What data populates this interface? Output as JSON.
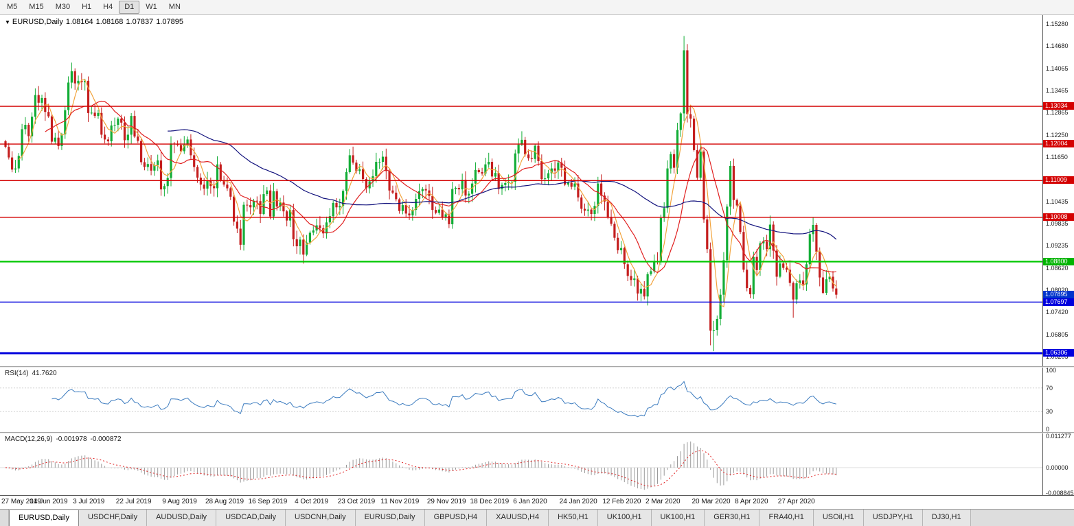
{
  "toolbar": {
    "timeframes": [
      "M5",
      "M15",
      "M30",
      "H1",
      "H4",
      "D1",
      "W1",
      "MN"
    ],
    "active": "D1"
  },
  "chart": {
    "marker": "▼",
    "title": "EURUSD,Daily",
    "open": "1.08164",
    "high": "1.08168",
    "low": "1.07837",
    "close": "1.07895"
  },
  "chart_data": {
    "type": "candlestick",
    "symbol": "EURUSD",
    "timeframe": "Daily",
    "y_range": [
      1.0595,
      1.1552
    ],
    "y_ticks": [
      "1.15280",
      "1.14680",
      "1.14065",
      "1.13465",
      "1.12865",
      "1.12250",
      "1.11650",
      "1.10435",
      "1.09835",
      "1.09235",
      "1.08620",
      "1.08020",
      "1.07420",
      "1.06805",
      "1.06205"
    ],
    "hlines": [
      {
        "value": 1.13034,
        "color": "#d40000",
        "width": 1.4
      },
      {
        "value": 1.12004,
        "color": "#d40000",
        "width": 1.4
      },
      {
        "value": 1.11009,
        "color": "#d40000",
        "width": 1.4
      },
      {
        "value": 1.10008,
        "color": "#d40000",
        "width": 1.4
      },
      {
        "value": 1.088,
        "color": "#00c800",
        "width": 2.2
      },
      {
        "value": 1.07697,
        "color": "#0000dd",
        "width": 1.4
      },
      {
        "value": 1.06306,
        "color": "#0000dd",
        "width": 3
      }
    ],
    "price_tags": [
      {
        "text": "1.13034",
        "value": 1.13034,
        "color": "#d40000"
      },
      {
        "text": "1.12004",
        "value": 1.12004,
        "color": "#d40000"
      },
      {
        "text": "1.11009",
        "value": 1.11009,
        "color": "#d40000"
      },
      {
        "text": "1.10008",
        "value": 1.10008,
        "color": "#d40000"
      },
      {
        "text": "1.08800",
        "value": 1.088,
        "color": "#00b400"
      },
      {
        "text": "1.07895",
        "value": 1.07895,
        "color": "#0033cc"
      },
      {
        "text": "1.07697",
        "value": 1.07697,
        "color": "#0000dd"
      },
      {
        "text": "1.06306",
        "value": 1.06306,
        "color": "#0000dd"
      }
    ],
    "up_color": "#12ad36",
    "down_color": "#c41e1e",
    "moving_averages": [
      {
        "period": 5,
        "color": "#f2a33c"
      },
      {
        "period": 13,
        "color": "#e02020"
      },
      {
        "period": 50,
        "color": "#12127d"
      }
    ],
    "x_axis_labels": [
      {
        "label": "27 May 2019",
        "index": 0
      },
      {
        "label": "14 Jun 2019",
        "index": 14
      },
      {
        "label": "3 Jul 2019",
        "index": 27
      },
      {
        "label": "22 Jul 2019",
        "index": 40
      },
      {
        "label": "9 Aug 2019",
        "index": 54
      },
      {
        "label": "28 Aug 2019",
        "index": 67
      },
      {
        "label": "16 Sep 2019",
        "index": 80
      },
      {
        "label": "4 Oct 2019",
        "index": 94
      },
      {
        "label": "23 Oct 2019",
        "index": 107
      },
      {
        "label": "11 Nov 2019",
        "index": 120
      },
      {
        "label": "29 Nov 2019",
        "index": 134
      },
      {
        "label": "18 Dec 2019",
        "index": 147
      },
      {
        "label": "6 Jan 2020",
        "index": 160
      },
      {
        "label": "24 Jan 2020",
        "index": 174
      },
      {
        "label": "12 Feb 2020",
        "index": 187
      },
      {
        "label": "2 Mar 2020",
        "index": 200
      },
      {
        "label": "20 Mar 2020",
        "index": 214
      },
      {
        "label": "8 Apr 2020",
        "index": 227
      },
      {
        "label": "27 Apr 2020",
        "index": 240
      }
    ],
    "closes": [
      1.1193,
      1.1164,
      1.1131,
      1.1134,
      1.1168,
      1.1241,
      1.1253,
      1.1222,
      1.1275,
      1.1334,
      1.1313,
      1.1326,
      1.1288,
      1.1276,
      1.1207,
      1.1218,
      1.1195,
      1.1227,
      1.1293,
      1.1368,
      1.1399,
      1.1366,
      1.1373,
      1.1369,
      1.1373,
      1.1285,
      1.1286,
      1.1277,
      1.1285,
      1.1226,
      1.1213,
      1.1208,
      1.1251,
      1.1253,
      1.127,
      1.1259,
      1.1211,
      1.1226,
      1.1277,
      1.1221,
      1.1209,
      1.1151,
      1.1138,
      1.1146,
      1.1128,
      1.1143,
      1.1156,
      1.1077,
      1.1086,
      1.1108,
      1.1202,
      1.12,
      1.1198,
      1.1181,
      1.1199,
      1.1213,
      1.117,
      1.1138,
      1.1109,
      1.109,
      1.1079,
      1.11,
      1.1086,
      1.108,
      1.1145,
      1.1101,
      1.109,
      1.108,
      1.1057,
      1.0989,
      1.097,
      1.0926,
      1.1035,
      1.1034,
      1.1028,
      1.1046,
      1.1045,
      1.101,
      1.1064,
      1.1074,
      1.1003,
      1.1072,
      1.103,
      1.1041,
      1.1017,
      1.0992,
      1.1021,
      1.0941,
      1.0922,
      1.094,
      1.0899,
      1.0932,
      1.0959,
      1.0965,
      1.0979,
      1.0971,
      1.0957,
      1.0987,
      1.1004,
      1.104,
      1.1028,
      1.1032,
      1.1073,
      1.1124,
      1.117,
      1.115,
      1.1127,
      1.1132,
      1.1105,
      1.108,
      1.1099,
      1.1113,
      1.1152,
      1.1152,
      1.1166,
      1.1127,
      1.1074,
      1.1068,
      1.105,
      1.1018,
      1.1034,
      1.1011,
      1.1006,
      1.1021,
      1.1051,
      1.1072,
      1.1078,
      1.1074,
      1.1059,
      1.1021,
      1.1013,
      1.1022,
      1.1001,
      1.1009,
      1.0982,
      1.1078,
      1.1081,
      1.1077,
      1.1103,
      1.106,
      1.1065,
      1.1093,
      1.113,
      1.1124,
      1.112,
      1.1145,
      1.1152,
      1.1112,
      1.1122,
      1.1078,
      1.1089,
      1.1094,
      1.1098,
      1.1098,
      1.1175,
      1.1199,
      1.1212,
      1.1172,
      1.1162,
      1.116,
      1.1196,
      1.1154,
      1.1105,
      1.1107,
      1.1121,
      1.1134,
      1.1128,
      1.115,
      1.1136,
      1.109,
      1.1095,
      1.1084,
      1.1093,
      1.1055,
      1.1024,
      1.1019,
      1.1022,
      1.101,
      1.1032,
      1.1093,
      1.106,
      1.1044,
      1.1,
      1.0983,
      1.0945,
      1.0911,
      1.0917,
      1.0873,
      1.0841,
      1.083,
      1.0834,
      1.0793,
      1.0806,
      1.0785,
      1.0846,
      1.0854,
      1.0881,
      1.088,
      1.0999,
      1.1026,
      1.1134,
      1.1173,
      1.1136,
      1.1239,
      1.1284,
      1.1456,
      1.1282,
      1.127,
      1.1184,
      1.1109,
      1.118,
      1.0995,
      1.0914,
      1.0692,
      1.0694,
      1.0724,
      1.079,
      1.0884,
      1.103,
      1.1141,
      1.1048,
      1.1033,
      1.0961,
      1.0858,
      1.0808,
      1.0791,
      1.0893,
      1.0857,
      1.093,
      1.0935,
      1.0914,
      1.0981,
      1.091,
      1.0839,
      1.0875,
      1.0863,
      1.0858,
      1.0822,
      1.0777,
      1.0821,
      1.0829,
      1.0818,
      1.0873,
      1.0955,
      1.098,
      1.0907,
      1.0837,
      1.0795,
      1.0832,
      1.0839,
      1.0807,
      1.079
    ],
    "extremes": [
      {
        "index": 193,
        "low": 1.0777
      },
      {
        "index": 205,
        "high": 1.1495
      },
      {
        "index": 213,
        "low": 1.0652
      },
      {
        "index": 214,
        "low": 1.0636
      },
      {
        "index": 238,
        "low": 1.0727
      }
    ],
    "rsi": {
      "label": "RSI(14)",
      "value": "41.7620",
      "period": 14,
      "color": "#3b7bbf",
      "levels": [
        70,
        30
      ],
      "ticks": [
        "100",
        "70",
        "30",
        "0"
      ]
    },
    "macd": {
      "label": "MACD(12,26,9)",
      "value_main": "-0.001978",
      "value_signal": "-0.000872",
      "fast": 12,
      "slow": 26,
      "signal_period": 9,
      "hist_color": "#9a9a9a",
      "signal_color": "#e02020",
      "range": [
        -0.0095,
        0.0118
      ],
      "ticks": [
        "0.011277",
        "0.00000",
        "-0.008845"
      ]
    }
  },
  "tabs": [
    {
      "label": "EURUSD,Daily",
      "active": true
    },
    {
      "label": "USDCHF,Daily",
      "active": false
    },
    {
      "label": "AUDUSD,Daily",
      "active": false
    },
    {
      "label": "USDCAD,Daily",
      "active": false
    },
    {
      "label": "USDCNH,Daily",
      "active": false
    },
    {
      "label": "EURUSD,Daily",
      "active": false
    },
    {
      "label": "GBPUSD,H4",
      "active": false
    },
    {
      "label": "XAUUSD,H4",
      "active": false
    },
    {
      "label": "HK50,H1",
      "active": false
    },
    {
      "label": "UK100,H1",
      "active": false
    },
    {
      "label": "UK100,H1",
      "active": false
    },
    {
      "label": "GER30,H1",
      "active": false
    },
    {
      "label": "FRA40,H1",
      "active": false
    },
    {
      "label": "USOil,H1",
      "active": false
    },
    {
      "label": "USDJPY,H1",
      "active": false
    },
    {
      "label": "DJ30,H1",
      "active": false
    }
  ]
}
